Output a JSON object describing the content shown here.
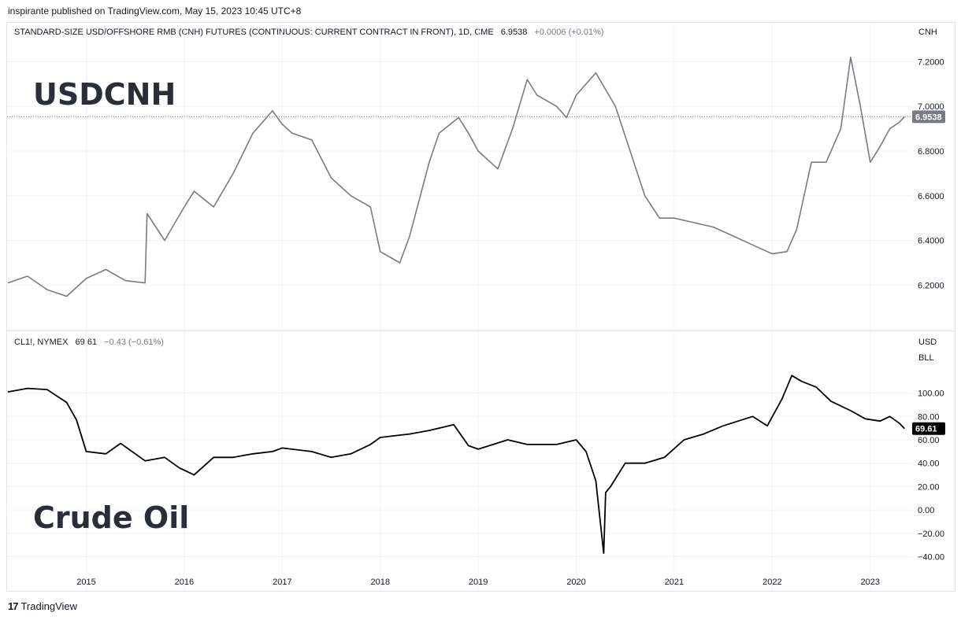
{
  "header": "inspirante published on TradingView.com, May 15, 2023 10:45 UTC+8",
  "footer": {
    "logo_mark": "17",
    "brand": "TradingView"
  },
  "chart_data": [
    {
      "type": "line",
      "title": "STANDARD-SIZE USD/OFFSHORE RMB (CNH) FUTURES (CONTINUOUS: CURRENT CONTRACT IN FRONT), 1D, CME",
      "last_value": "6.9538",
      "change": "+0.0006 (+0.01%)",
      "unit": "CNH",
      "label": "USDCNH",
      "price_tag": "6.9538",
      "line_color": "#787b86",
      "ylim": [
        6.05,
        7.3
      ],
      "y_ticks": [
        "6.2000",
        "6.4000",
        "6.6000",
        "6.8000",
        "7.0000",
        "7.2000"
      ],
      "x": [
        2014.2,
        2014.4,
        2014.6,
        2014.8,
        2015.0,
        2015.2,
        2015.4,
        2015.6,
        2015.62,
        2015.8,
        2016.0,
        2016.1,
        2016.3,
        2016.5,
        2016.7,
        2016.9,
        2017.0,
        2017.1,
        2017.3,
        2017.5,
        2017.7,
        2017.9,
        2018.0,
        2018.2,
        2018.3,
        2018.5,
        2018.6,
        2018.8,
        2018.9,
        2019.0,
        2019.2,
        2019.35,
        2019.5,
        2019.6,
        2019.8,
        2019.9,
        2020.0,
        2020.2,
        2020.4,
        2020.55,
        2020.7,
        2020.85,
        2021.0,
        2021.2,
        2021.4,
        2021.6,
        2021.8,
        2022.0,
        2022.15,
        2022.25,
        2022.4,
        2022.55,
        2022.7,
        2022.8,
        2022.9,
        2023.0,
        2023.1,
        2023.2,
        2023.3,
        2023.35
      ],
      "y": [
        6.21,
        6.24,
        6.18,
        6.15,
        6.23,
        6.27,
        6.22,
        6.21,
        6.52,
        6.4,
        6.55,
        6.62,
        6.55,
        6.7,
        6.88,
        6.98,
        6.92,
        6.88,
        6.85,
        6.68,
        6.6,
        6.55,
        6.35,
        6.3,
        6.42,
        6.75,
        6.88,
        6.95,
        6.88,
        6.8,
        6.72,
        6.9,
        7.12,
        7.05,
        7.0,
        6.95,
        7.05,
        7.15,
        7.0,
        6.8,
        6.6,
        6.5,
        6.5,
        6.48,
        6.46,
        6.42,
        6.38,
        6.34,
        6.35,
        6.45,
        6.75,
        6.75,
        6.9,
        7.22,
        7.0,
        6.75,
        6.82,
        6.9,
        6.93,
        6.9538
      ]
    },
    {
      "type": "line",
      "title": "CL1!, NYMEX",
      "last_value": "69.61",
      "change": "−0.43 (−0.61%)",
      "unit": "USD",
      "unit2": "BLL",
      "label": "Crude Oil",
      "price_tag": "69.61",
      "line_color": "#000000",
      "ylim": [
        -45,
        130
      ],
      "y_ticks": [
        "−40.00",
        "−20.00",
        "0.00",
        "20.00",
        "40.00",
        "60.00",
        "80.00",
        "100.00"
      ],
      "x_ticks": [
        "2015",
        "2016",
        "2017",
        "2018",
        "2019",
        "2020",
        "2021",
        "2022",
        "2023"
      ],
      "x": [
        2014.2,
        2014.4,
        2014.6,
        2014.8,
        2014.9,
        2015.0,
        2015.2,
        2015.35,
        2015.6,
        2015.8,
        2015.95,
        2016.1,
        2016.3,
        2016.5,
        2016.7,
        2016.9,
        2017.0,
        2017.3,
        2017.5,
        2017.7,
        2017.9,
        2018.0,
        2018.3,
        2018.5,
        2018.75,
        2018.9,
        2019.0,
        2019.3,
        2019.5,
        2019.8,
        2020.0,
        2020.1,
        2020.2,
        2020.28,
        2020.3,
        2020.35,
        2020.5,
        2020.7,
        2020.9,
        2021.1,
        2021.3,
        2021.5,
        2021.8,
        2021.95,
        2022.1,
        2022.2,
        2022.3,
        2022.45,
        2022.6,
        2022.8,
        2022.95,
        2023.1,
        2023.2,
        2023.3,
        2023.35
      ],
      "y": [
        101,
        104,
        103,
        92,
        77,
        50,
        48,
        57,
        42,
        45,
        36,
        30,
        45,
        45,
        48,
        50,
        53,
        50,
        45,
        48,
        56,
        62,
        65,
        68,
        73,
        55,
        52,
        60,
        56,
        56,
        60,
        50,
        25,
        -37,
        15,
        20,
        40,
        40,
        45,
        60,
        65,
        72,
        80,
        72,
        95,
        115,
        110,
        105,
        93,
        85,
        78,
        76,
        80,
        74,
        69.61
      ]
    }
  ]
}
